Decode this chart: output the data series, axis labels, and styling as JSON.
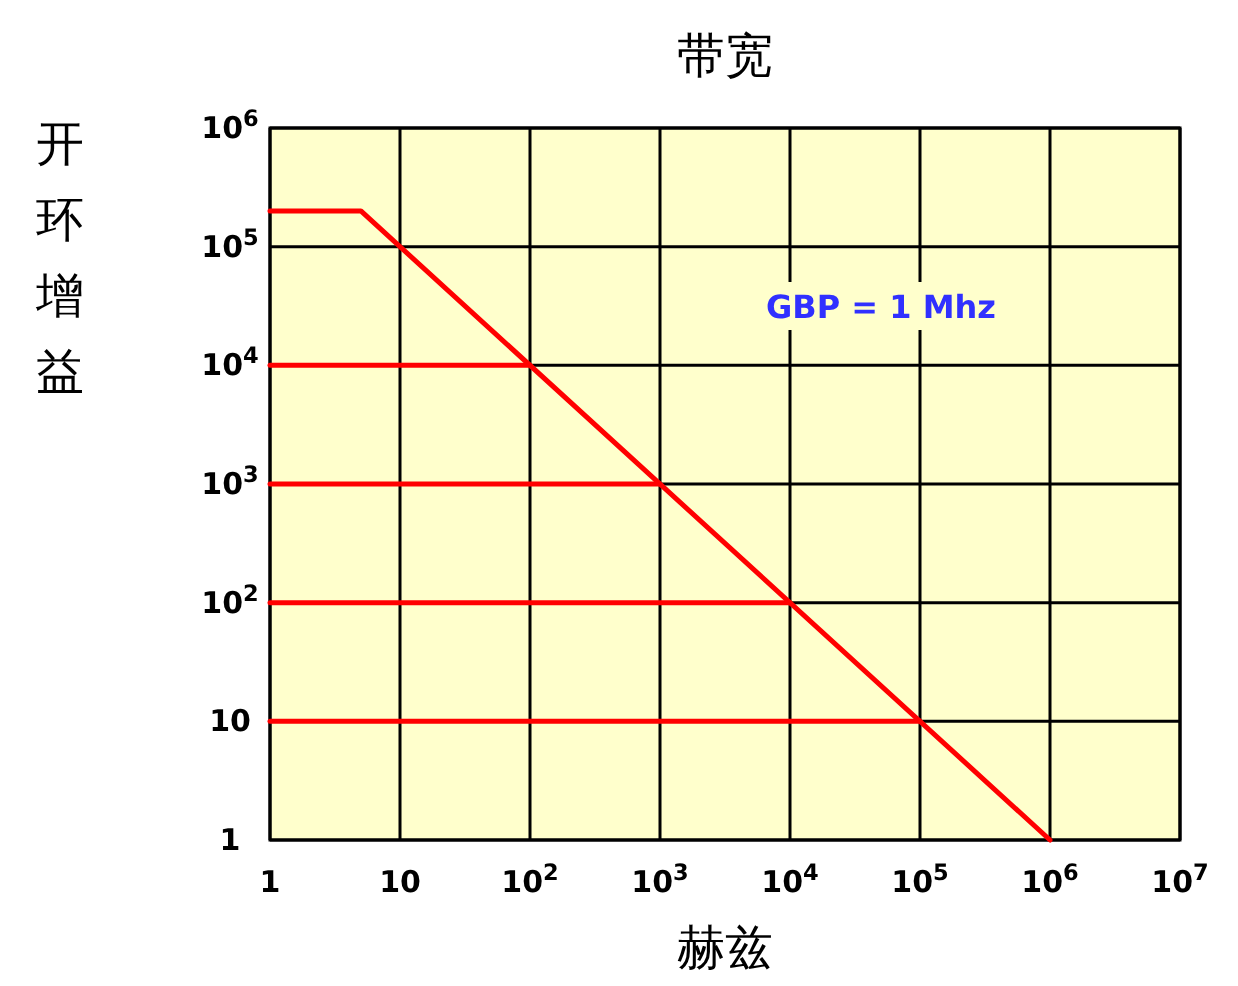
{
  "chart_data": {
    "type": "line",
    "title": "带宽",
    "xlabel": "赫兹",
    "ylabel": "开环增益",
    "log": "xy",
    "grid": true,
    "line_style": "solid",
    "xlim": [
      1,
      10000000
    ],
    "ylim": [
      1,
      1000000
    ],
    "xticks": [
      1,
      10,
      {
        "value": 100,
        "label": "10$^{2}$"
      },
      {
        "value": 1000,
        "label": "10$^{3}$"
      },
      {
        "value": 10000,
        "label": "10$^{4}$"
      },
      {
        "value": 100000,
        "label": "10$^{5}$"
      },
      {
        "value": 1000000,
        "label": "10$^{6}$"
      },
      {
        "value": 10000000,
        "label": "10$^{7}$"
      }
    ],
    "yticks": [
      1,
      10,
      {
        "value": 100,
        "label": "10$^{2}$"
      },
      {
        "value": 1000,
        "label": "10$^{3}$"
      },
      {
        "value": 10000,
        "label": "10$^{4}$"
      },
      {
        "value": 100000,
        "label": "10$^{5}$"
      },
      {
        "value": 1000000,
        "label": "10$^{6}$"
      }
    ],
    "series": [
      {
        "color": "#ff0000",
        "x": [
          1,
          5,
          1000000
        ],
        "values": [
          200000,
          200000,
          1
        ]
      },
      {
        "color": "#ff0000",
        "x": [
          1,
          100
        ],
        "values": [
          10000,
          10000
        ]
      },
      {
        "color": "#ff0000",
        "x": [
          1,
          1000
        ],
        "values": [
          1000,
          1000
        ]
      },
      {
        "color": "#ff0000",
        "x": [
          1,
          10000
        ],
        "values": [
          100,
          100
        ]
      },
      {
        "color": "#ff0000",
        "x": [
          1,
          100000
        ],
        "values": [
          10,
          10
        ]
      }
    ],
    "annotations": [
      "GBP = 1 Mhz"
    ]
  }
}
